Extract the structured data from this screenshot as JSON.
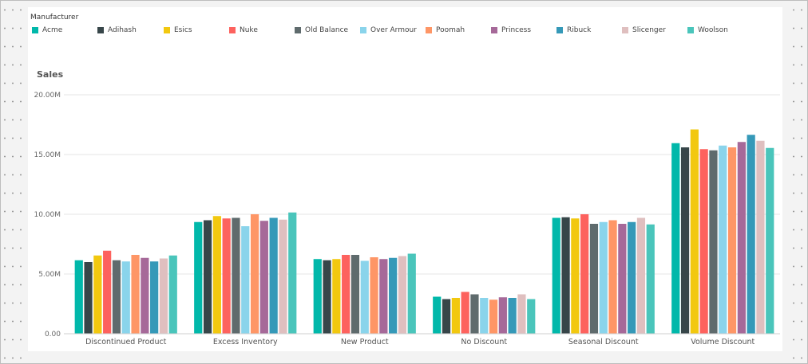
{
  "legend": {
    "title": "Manufacturer"
  },
  "chart_data": {
    "type": "bar",
    "title": "Sales",
    "xlabel": "",
    "ylabel": "",
    "ylim": [
      0,
      20000000
    ],
    "yticks": [
      "0.00",
      "5.00M",
      "10.00M",
      "15.00M",
      "20.00M"
    ],
    "grid": true,
    "legend_placement": "top-left",
    "categories": [
      "Discontinued Product",
      "Excess Inventory",
      "New Product",
      "No Discount",
      "Seasonal Discount",
      "Volume Discount"
    ],
    "series": [
      {
        "name": "Acme",
        "color": "#01B8AA",
        "values": [
          6150000,
          9350000,
          6250000,
          3100000,
          9700000,
          15950000
        ]
      },
      {
        "name": "Adihash",
        "color": "#374649",
        "values": [
          6000000,
          9500000,
          6150000,
          2900000,
          9750000,
          15600000
        ]
      },
      {
        "name": "Esics",
        "color": "#F2C80F",
        "values": [
          6550000,
          9850000,
          6250000,
          3000000,
          9650000,
          17100000
        ]
      },
      {
        "name": "Nuke",
        "color": "#FD625E",
        "values": [
          6950000,
          9650000,
          6600000,
          3500000,
          10000000,
          15450000
        ]
      },
      {
        "name": "Old Balance",
        "color": "#5F6B6D",
        "values": [
          6150000,
          9700000,
          6600000,
          3300000,
          9200000,
          15350000
        ]
      },
      {
        "name": "Over Armour",
        "color": "#8AD4EB",
        "values": [
          6050000,
          9000000,
          6100000,
          3000000,
          9350000,
          15750000
        ]
      },
      {
        "name": "Poomah",
        "color": "#FE9666",
        "values": [
          6600000,
          10000000,
          6400000,
          2850000,
          9500000,
          15600000
        ]
      },
      {
        "name": "Princess",
        "color": "#A66999",
        "values": [
          6350000,
          9450000,
          6250000,
          3050000,
          9200000,
          16050000
        ]
      },
      {
        "name": "Ribuck",
        "color": "#3599B8",
        "values": [
          6050000,
          9700000,
          6350000,
          3000000,
          9350000,
          16650000
        ]
      },
      {
        "name": "Slicenger",
        "color": "#DFBFBF",
        "values": [
          6300000,
          9550000,
          6500000,
          3300000,
          9700000,
          16150000
        ]
      },
      {
        "name": "Woolson",
        "color": "#4AC5BB",
        "values": [
          6550000,
          10150000,
          6700000,
          2900000,
          9150000,
          15550000
        ]
      }
    ]
  }
}
